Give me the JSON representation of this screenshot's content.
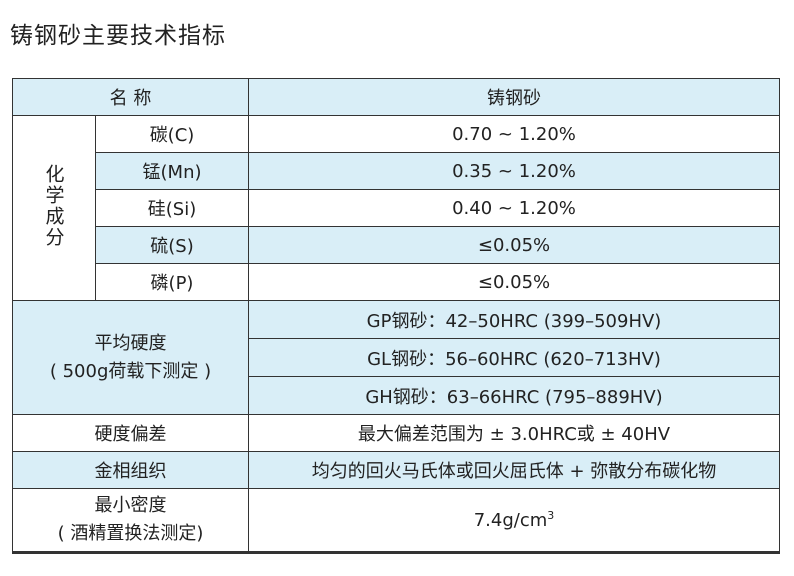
{
  "title": "铸钢砂主要技术指标",
  "header": {
    "name": "名 称",
    "value": "铸钢砂"
  },
  "chemical": {
    "label": "化学成分",
    "rows": [
      {
        "element": "碳(C)",
        "value": "0.70 ~ 1.20%"
      },
      {
        "element": "锰(Mn)",
        "value": "0.35 ~ 1.20%"
      },
      {
        "element": "硅(Si)",
        "value": "0.40 ~ 1.20%"
      },
      {
        "element": "硫(S)",
        "value": "≤0.05%"
      },
      {
        "element": "磷(P)",
        "value": "≤0.05%"
      }
    ]
  },
  "hardness": {
    "label_line1": "平均硬度",
    "label_line2": "( 500g荷载下测定 )",
    "rows": [
      "GP钢砂：42–50HRC (399–509HV)",
      "GL钢砂：56–60HRC (620–713HV)",
      "GH钢砂：63–66HRC (795–889HV)"
    ]
  },
  "deviation": {
    "label": "硬度偏差",
    "value": "最大偏差范围为 ± 3.0HRC或 ± 40HV"
  },
  "metallography": {
    "label": "金相组织",
    "value": "均匀的回火马氏体或回火屈氏体 + 弥散分布碳化物"
  },
  "density": {
    "label_line1": "最小密度",
    "label_line2": "( 酒精置换法测定)",
    "value": "7.4g/cm",
    "unit_sup": "3"
  },
  "colors": {
    "shade": "#d9eef7",
    "border": "#333333"
  }
}
